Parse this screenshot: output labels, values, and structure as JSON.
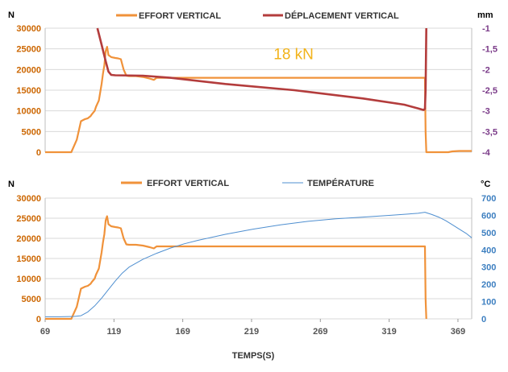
{
  "colors": {
    "effort": "#F0923A",
    "deplacement": "#B33C3C",
    "temperature": "#4F8FD0",
    "grid": "#D9D9D9",
    "axis_left": "#CC6600",
    "axis_right_top": "#7A3A88",
    "axis_right_bottom": "#3D7FC0",
    "x_axis": "#555555",
    "annotation": "#F2B31A"
  },
  "chart_data": [
    {
      "type": "line",
      "ylabel": "N",
      "y2label": "mm",
      "ylim": [
        0,
        30000
      ],
      "y2lim": [
        -4,
        -1
      ],
      "yticks": [
        0,
        5000,
        10000,
        15000,
        20000,
        25000,
        30000
      ],
      "y2ticks": [
        "-4",
        "-3,5",
        "-3",
        "-2,5",
        "-2",
        "-1,5",
        "-1"
      ],
      "xlim": [
        69,
        379
      ],
      "legend_position": "top",
      "grid": true,
      "annotation": {
        "text": "18 kN",
        "x": 235,
        "y": 22500
      },
      "series": [
        {
          "name": "EFFORT VERTICAL",
          "axis": "left",
          "x": [
            69,
            80,
            88,
            92,
            95,
            98,
            100,
            102,
            103,
            105,
            106,
            108,
            110,
            111,
            112,
            113,
            114,
            115,
            117,
            120,
            122,
            124,
            126,
            128,
            130,
            135,
            140,
            145,
            148,
            150,
            152,
            155,
            200,
            250,
            300,
            340,
            345,
            345.5,
            346,
            350,
            355,
            362,
            365,
            370,
            379
          ],
          "values": [
            0,
            0,
            0,
            3000,
            7500,
            8000,
            8200,
            8700,
            9200,
            10000,
            11000,
            12500,
            16500,
            19000,
            21000,
            24500,
            25500,
            23500,
            23000,
            22800,
            22700,
            22500,
            20000,
            18500,
            18400,
            18400,
            18200,
            17800,
            17500,
            18000,
            18000,
            18000,
            18000,
            18000,
            18000,
            18000,
            18000,
            5000,
            0,
            0,
            0,
            0,
            200,
            300,
            300
          ]
        },
        {
          "name": "DÉPLACEMENT VERTICAL",
          "axis": "right",
          "x": [
            107,
            110,
            113,
            115,
            117,
            120,
            140,
            160,
            200,
            250,
            300,
            330,
            340,
            344,
            345,
            345.5,
            346
          ],
          "values": [
            -1,
            -1.4,
            -1.8,
            -2.05,
            -2.13,
            -2.14,
            -2.15,
            -2.2,
            -2.35,
            -2.5,
            -2.7,
            -2.85,
            -2.94,
            -2.98,
            -2.95,
            -2.5,
            -1
          ]
        }
      ]
    },
    {
      "type": "line",
      "ylabel": "N",
      "y2label": "°C",
      "xlabel": "TEMPS(S)",
      "ylim": [
        0,
        30000
      ],
      "y2lim": [
        0,
        700
      ],
      "yticks": [
        0,
        5000,
        10000,
        15000,
        20000,
        25000,
        30000
      ],
      "y2ticks": [
        0,
        100,
        200,
        300,
        400,
        500,
        600,
        700
      ],
      "xlim": [
        69,
        379
      ],
      "xticks": [
        69,
        119,
        169,
        219,
        269,
        319,
        369
      ],
      "legend_position": "top",
      "grid": true,
      "series": [
        {
          "name": "EFFORT VERTICAL",
          "axis": "left",
          "x": [
            69,
            80,
            88,
            92,
            95,
            98,
            100,
            102,
            103,
            105,
            106,
            108,
            110,
            111,
            112,
            113,
            114,
            115,
            117,
            120,
            122,
            124,
            126,
            128,
            130,
            135,
            140,
            145,
            148,
            150,
            152,
            155,
            200,
            250,
            300,
            340,
            345,
            345.5,
            346
          ],
          "values": [
            0,
            0,
            0,
            3000,
            7500,
            8000,
            8200,
            8700,
            9200,
            10000,
            11000,
            12500,
            16500,
            19000,
            21000,
            24500,
            25500,
            23500,
            23000,
            22800,
            22700,
            22500,
            20000,
            18500,
            18400,
            18400,
            18200,
            17800,
            17500,
            18000,
            18000,
            18000,
            18000,
            18000,
            18000,
            18000,
            18000,
            5000,
            0
          ]
        },
        {
          "name": "TEMPÉRATURE",
          "axis": "right",
          "x": [
            69,
            80,
            90,
            95,
            100,
            105,
            110,
            115,
            120,
            125,
            130,
            140,
            150,
            160,
            170,
            180,
            200,
            220,
            240,
            260,
            280,
            300,
            320,
            340,
            345,
            350,
            355,
            360,
            365,
            370,
            375,
            379
          ],
          "values": [
            12,
            12,
            14,
            18,
            40,
            75,
            120,
            170,
            220,
            265,
            300,
            345,
            380,
            410,
            435,
            455,
            490,
            520,
            545,
            565,
            580,
            590,
            600,
            612,
            618,
            605,
            590,
            570,
            545,
            520,
            495,
            470
          ]
        }
      ]
    }
  ]
}
